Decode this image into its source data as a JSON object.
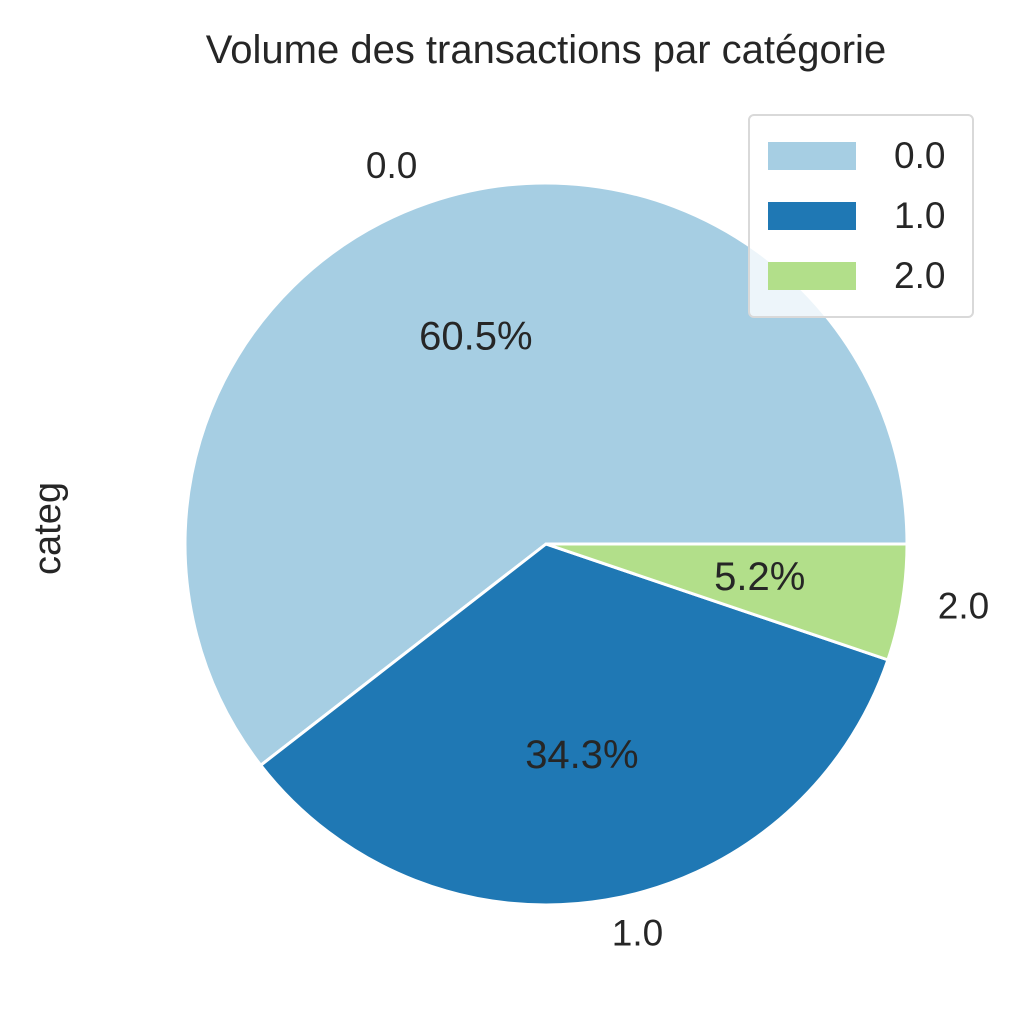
{
  "chart_data": {
    "type": "pie",
    "title": "Volume des transactions par catégorie",
    "ylabel": "categ",
    "categories": [
      "0.0",
      "1.0",
      "2.0"
    ],
    "values": [
      60.5,
      34.3,
      5.2
    ],
    "percent_labels": [
      "60.5%",
      "34.3%",
      "5.2%"
    ],
    "colors": [
      "#a6cee3",
      "#1f78b4",
      "#b2df8a"
    ],
    "legend": {
      "placement": "top-right",
      "entries": [
        "0.0",
        "1.0",
        "2.0"
      ]
    }
  }
}
